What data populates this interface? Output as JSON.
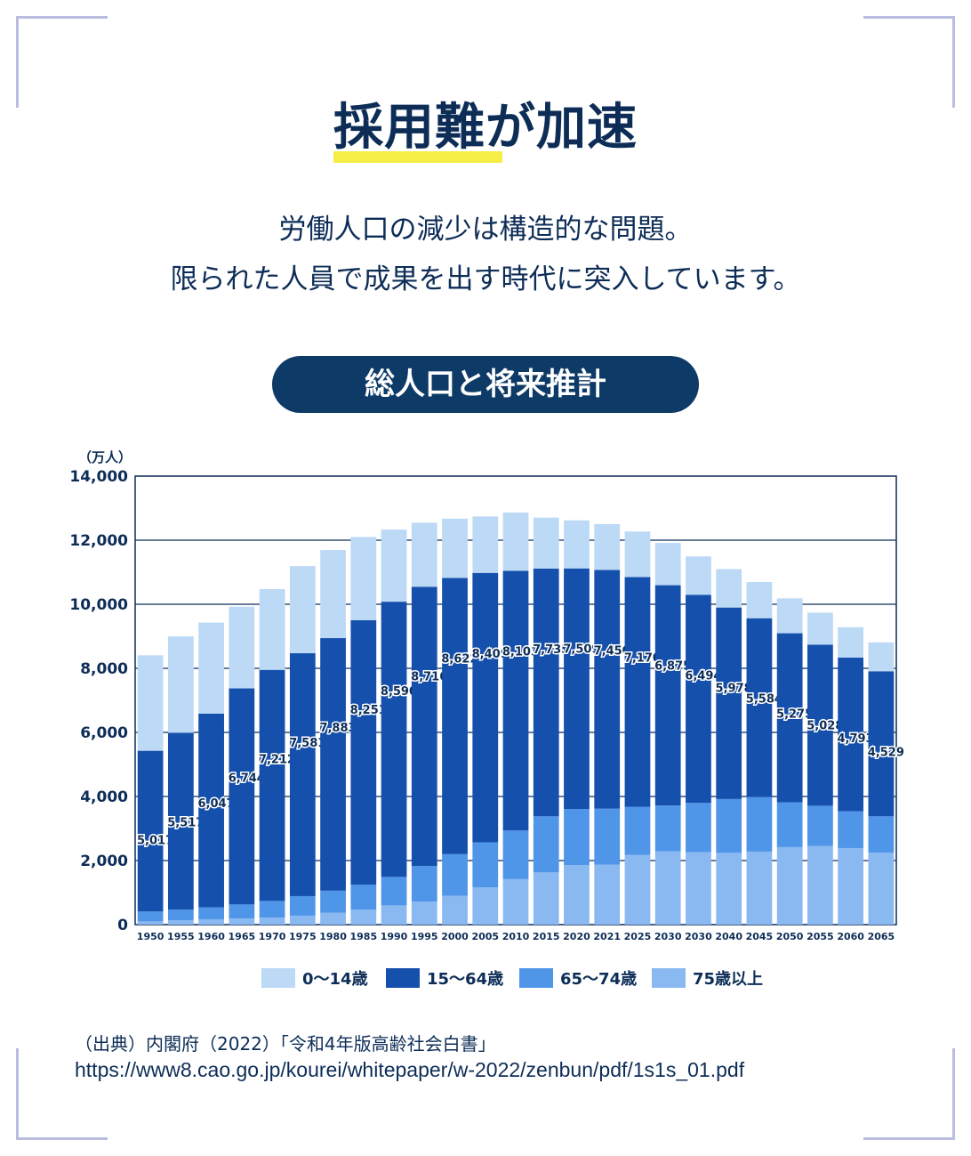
{
  "title": "採用難が加速",
  "lead": {
    "line1": "労働人口の減少は構造的な問題。",
    "line2": "限られた人員で成果を出す時代に突入しています。"
  },
  "chart_heading": "総人口と将来推計",
  "colors": {
    "navy": "#0d3a66",
    "highlight": "#f4ee45",
    "age_0_14": "#bcd9f5",
    "age_15_64": "#1550ad",
    "age_65_74": "#4f95e8",
    "age_75_plus": "#8ab9f2"
  },
  "chart_data": {
    "type": "bar",
    "stacked": true,
    "unit_label": "（万人）",
    "ylim": [
      0,
      14000
    ],
    "yticks": [
      "0",
      "2,000",
      "4,000",
      "6,000",
      "8,000",
      "10,000",
      "12,000",
      "14,000"
    ],
    "ytick_values": [
      0,
      2000,
      4000,
      6000,
      8000,
      10000,
      12000,
      14000
    ],
    "grid": true,
    "legend_position": "bottom",
    "categories": [
      "1950",
      "1955",
      "1960",
      "1965",
      "1970",
      "1975",
      "1980",
      "1985",
      "1990",
      "1995",
      "2000",
      "2005",
      "2010",
      "2015",
      "2020",
      "2021",
      "2025",
      "2030",
      "2030",
      "2040",
      "2045",
      "2050",
      "2055",
      "2060",
      "2065"
    ],
    "series": [
      {
        "name": "75歳以上",
        "color": "#8ab9f2",
        "values": [
          100,
          140,
          160,
          190,
          220,
          280,
          370,
          470,
          600,
          720,
          900,
          1160,
          1420,
          1630,
          1860,
          1870,
          2180,
          2290,
          2260,
          2240,
          2280,
          2420,
          2450,
          2390,
          2250
        ]
      },
      {
        "name": "65〜74歳",
        "color": "#4f95e8",
        "values": [
          310,
          330,
          380,
          440,
          520,
          610,
          690,
          780,
          890,
          1110,
          1300,
          1410,
          1520,
          1750,
          1750,
          1750,
          1500,
          1430,
          1540,
          1680,
          1700,
          1400,
          1260,
          1150,
          1130
        ]
      },
      {
        "name": "15〜64歳",
        "color": "#1550ad",
        "values": [
          5017,
          5517,
          6047,
          6744,
          7212,
          7581,
          7883,
          8251,
          8590,
          8716,
          8622,
          8409,
          8103,
          7735,
          7509,
          7450,
          7170,
          6875,
          6494,
          5978,
          5584,
          5275,
          5028,
          4793,
          4529
        ]
      },
      {
        "name": "0〜14歳",
        "color": "#bcd9f5",
        "values": [
          2980,
          3010,
          2840,
          2550,
          2520,
          2720,
          2750,
          2600,
          2250,
          2000,
          1850,
          1760,
          1820,
          1590,
          1500,
          1430,
          1420,
          1320,
          1200,
          1200,
          1130,
          1090,
          1000,
          950,
          900
        ]
      }
    ],
    "labels_15_64": [
      "5,017",
      "5,517",
      "6,047",
      "6,744",
      "7,212",
      "7,581",
      "7,883",
      "8,251",
      "8,590",
      "8,716",
      "8,622",
      "8,409",
      "8,103",
      "7,735",
      "7,509",
      "7,450",
      "7,170",
      "6,875",
      "6,494",
      "5,978",
      "5,584",
      "5,275",
      "5,028",
      "4,793",
      "4,529"
    ],
    "legend": [
      "0〜14歳",
      "15〜64歳",
      "65〜74歳",
      "75歳以上"
    ]
  },
  "source": {
    "line1": "（出典）内閣府（2022）「令和4年版高齢社会白書」",
    "line2": "https://www8.cao.go.jp/kourei/whitepaper/w-2022/zenbun/pdf/1s1s_01.pdf"
  }
}
